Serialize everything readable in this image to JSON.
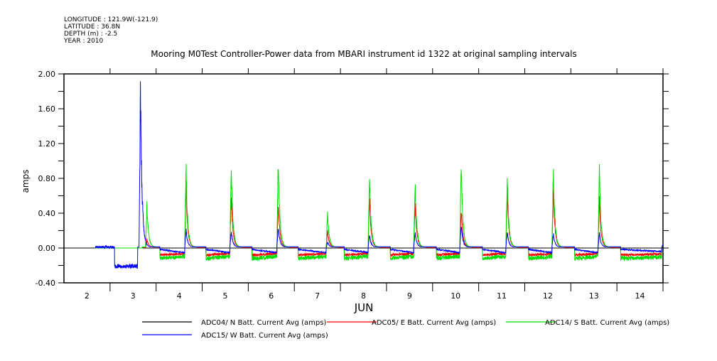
{
  "header": {
    "longitude": "LONGITUDE : 121.9W(-121.9)",
    "latitude": "LATITUDE : 36.8N",
    "depth": "DEPTH (m) : -2.5",
    "year": "YEAR : 2010"
  },
  "chart_data": {
    "type": "line",
    "title": "Mooring M0Test Controller-Power data from MBARI instrument id 1322 at original sampling intervals",
    "xlabel": "JUN",
    "ylabel": "amps",
    "xlim": [
      2,
      15
    ],
    "ylim": [
      -0.4,
      2.0
    ],
    "x_ticks": [
      "2",
      "3",
      "4",
      "5",
      "6",
      "7",
      "8",
      "9",
      "10",
      "11",
      "12",
      "13",
      "14"
    ],
    "y_ticks": [
      "2.00",
      "1.60",
      "1.20",
      "0.80",
      "0.40",
      "0.00",
      "-0.40"
    ],
    "y_tick_values": [
      2.0,
      1.6,
      1.2,
      0.8,
      0.4,
      0.0,
      -0.4
    ],
    "grid": false,
    "legend_placement": "bottom",
    "series": [
      {
        "name": "ADC04/ N Batt. Current Avg (amps)",
        "color": "#000000",
        "key": "n"
      },
      {
        "name": "ADC05/ E Batt. Current Avg (amps)",
        "color": "#ff0000",
        "key": "e"
      },
      {
        "name": "ADC14/ S Batt. Current Avg (amps)",
        "color": "#00dd00",
        "key": "s"
      },
      {
        "name": "ADC15/ W Batt. Current Avg (amps)",
        "color": "#0000ff",
        "key": "w"
      }
    ],
    "daily_peaks": [
      {
        "day": 3,
        "time": 3.66,
        "n": 0,
        "e": 0.1,
        "s": 0.53,
        "w": 2.0
      },
      {
        "day": 4,
        "time": 4.65,
        "n": 0,
        "e": 0.8,
        "s": 1.03,
        "w": 0.23
      },
      {
        "day": 5,
        "time": 5.63,
        "n": 0,
        "e": 0.72,
        "s": 1.12,
        "w": 0.22
      },
      {
        "day": 6,
        "time": 6.65,
        "n": 0,
        "e": 0.6,
        "s": 1.16,
        "w": 0.27
      },
      {
        "day": 7,
        "time": 7.72,
        "n": 0,
        "e": 0.22,
        "s": 0.45,
        "w": 0.07
      },
      {
        "day": 8,
        "time": 8.63,
        "n": 0,
        "e": 0.65,
        "s": 0.91,
        "w": 0.16
      },
      {
        "day": 9,
        "time": 9.62,
        "n": 0,
        "e": 0.6,
        "s": 0.86,
        "w": 0.2
      },
      {
        "day": 10,
        "time": 10.62,
        "n": 0,
        "e": 0.5,
        "s": 1.12,
        "w": 0.3
      },
      {
        "day": 11,
        "time": 11.62,
        "n": 0,
        "e": 0.72,
        "s": 0.9,
        "w": 0.2
      },
      {
        "day": 12,
        "time": 12.62,
        "n": 0,
        "e": 0.75,
        "s": 1.02,
        "w": 0.18
      },
      {
        "day": 13,
        "time": 13.62,
        "n": 0,
        "e": 0.6,
        "s": 0.97,
        "w": 0.18
      }
    ],
    "night_baseline": {
      "n": 0.0,
      "e": -0.08,
      "s": -0.12,
      "w": -0.04
    },
    "w_pre_deploy_dip": {
      "start": 3.1,
      "end": 3.6,
      "value": -0.21
    }
  }
}
